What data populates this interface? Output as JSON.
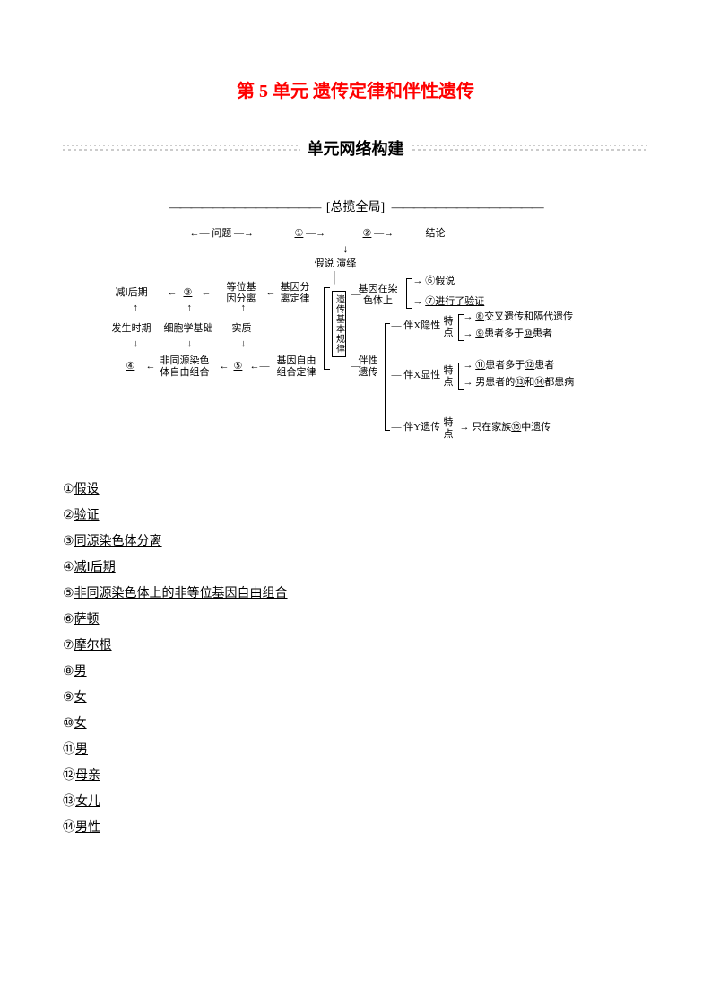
{
  "title": "第 5 单元 遗传定律和伴性遗传",
  "section_header": "单元网络构建",
  "subsection_header": "[总揽全局]",
  "colors": {
    "title": "#ff0000",
    "text": "#000000",
    "background": "#ffffff",
    "separator": "#cccccc"
  },
  "fonts": {
    "title_size": 20,
    "section_size": 18,
    "body_size": 14,
    "diagram_size": 11
  },
  "diagram": {
    "type": "flowchart",
    "top_row": {
      "left": "问题",
      "blank1": "①",
      "blank2": "②",
      "right": "结论"
    },
    "method": "假说 演绎",
    "left_block": {
      "phase1": "减Ⅰ后期",
      "blank3": "③",
      "allele": "等位基\n因分离",
      "rule1": "基因分\n离定律",
      "occur": "发生时期",
      "cellbase": "细胞学基础",
      "essence": "实质",
      "blank4": "④",
      "nonhom": "非同源染色\n体自由组合",
      "blank5": "⑤",
      "rule2": "基因自由\n组合定律"
    },
    "center_vertical": "遗传基本规律",
    "chromosome": "基因在染\n色体上",
    "right_block": {
      "hyp6": "⑥假说",
      "ver7": "⑦进行了验证",
      "sextrans": "伴性\n遗传",
      "xrec": "伴X隐性",
      "xrec_feat1": "⑧交叉遗传和隔代遗传",
      "xrec_feat2": "⑨患者多于⑩患者",
      "feat": "特\n点",
      "xdom": "伴X显性",
      "xdom_feat1": "⑪患者多于⑫患者",
      "xdom_feat2": "男患者的⑬和⑭都患病",
      "y": "伴Y遗传",
      "y_feat": "只在家族⑮中遗传"
    }
  },
  "answers": [
    {
      "n": "①",
      "t": "假设"
    },
    {
      "n": "②",
      "t": "验证"
    },
    {
      "n": "③",
      "t": "同源染色体分离"
    },
    {
      "n": "④",
      "t": "减Ⅰ后期"
    },
    {
      "n": "⑤",
      "t": "非同源染色体上的非等位基因自由组合"
    },
    {
      "n": "⑥",
      "t": "萨顿"
    },
    {
      "n": "⑦",
      "t": "摩尔根"
    },
    {
      "n": "⑧",
      "t": "男"
    },
    {
      "n": "⑨",
      "t": "女"
    },
    {
      "n": "⑩",
      "t": "女"
    },
    {
      "n": "⑪",
      "t": "男"
    },
    {
      "n": "⑫",
      "t": "母亲"
    },
    {
      "n": "⑬",
      "t": "女儿"
    },
    {
      "n": "⑭",
      "t": "男性"
    }
  ]
}
